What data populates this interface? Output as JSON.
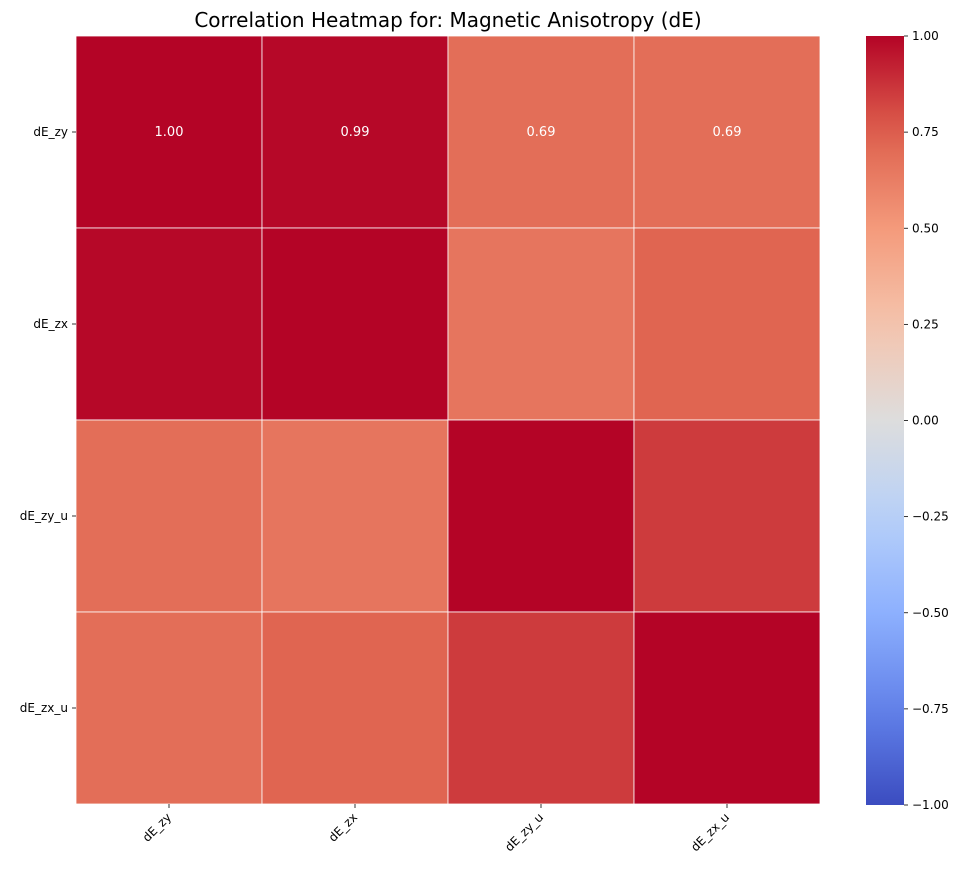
{
  "chart_data": {
    "type": "heatmap",
    "title": "Correlation Heatmap for: Magnetic Anisotropy (dE)",
    "rows": [
      "dE_zy",
      "dE_zx",
      "dE_zy_u",
      "dE_zx_u"
    ],
    "cols": [
      "dE_zy",
      "dE_zx",
      "dE_zy_u",
      "dE_zx_u"
    ],
    "values": [
      [
        1.0,
        0.99,
        0.69,
        0.69
      ],
      [
        0.99,
        1.0,
        0.66,
        0.73
      ],
      [
        0.69,
        0.66,
        1.0,
        0.85
      ],
      [
        0.69,
        0.73,
        0.85,
        1.0
      ]
    ],
    "annotations": [
      [
        "1.00",
        "0.99",
        "0.69",
        "0.69"
      ],
      [
        "",
        "",
        "",
        ""
      ],
      [
        "",
        "",
        "",
        ""
      ],
      [
        "",
        "",
        "",
        ""
      ]
    ],
    "colormap": "coolwarm",
    "vmin": -1.0,
    "vmax": 1.0,
    "colorbar_ticks": [
      "1.00",
      "0.75",
      "0.50",
      "0.25",
      "0.00",
      "−0.25",
      "−0.50",
      "−0.75",
      "−1.00"
    ],
    "colorbar_tick_values": [
      1.0,
      0.75,
      0.5,
      0.25,
      0.0,
      -0.25,
      -0.5,
      -0.75,
      -1.0
    ],
    "grid_line_color": "#ffffff",
    "annotation_color": "#ffffff"
  }
}
